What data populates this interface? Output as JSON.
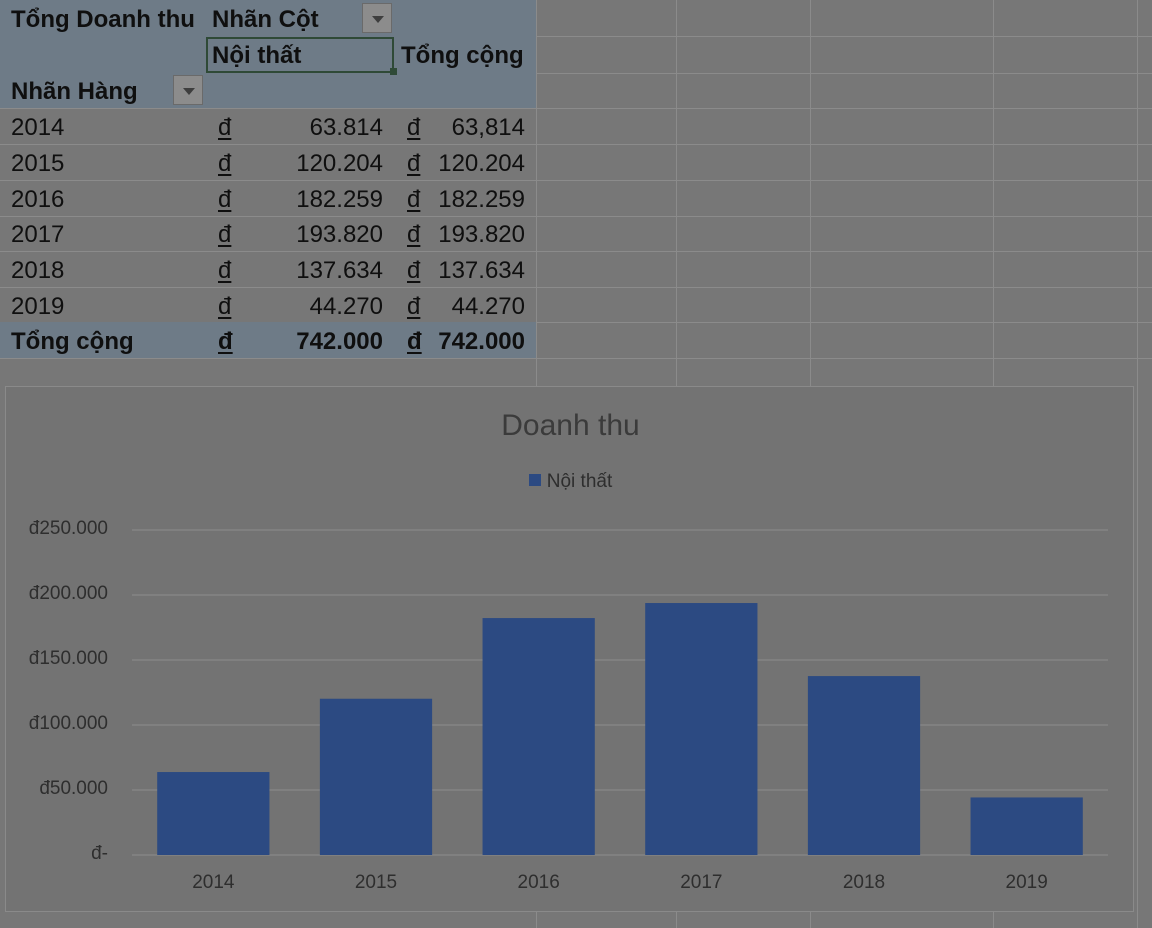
{
  "pivot": {
    "header_value": "Tổng Doanh thu",
    "column_labels": "Nhãn Cột",
    "column_item": "Nội thất",
    "grand_total_col": "Tổng cộng",
    "row_labels": "Nhãn Hàng",
    "currency_symbol": "đ",
    "rows": [
      {
        "year": "2014",
        "value": "63.814",
        "total": "63,814"
      },
      {
        "year": "2015",
        "value": "120.204",
        "total": "120.204"
      },
      {
        "year": "2016",
        "value": "182.259",
        "total": "182.259"
      },
      {
        "year": "2017",
        "value": "193.820",
        "total": "193.820"
      },
      {
        "year": "2018",
        "value": "137.634",
        "total": "137.634"
      },
      {
        "year": "2019",
        "value": "44.270",
        "total": "44.270"
      }
    ],
    "grand_total": {
      "label": "Tổng cộng",
      "value": "742.000",
      "total": "742.000"
    }
  },
  "chart_data": {
    "type": "bar",
    "title": "Doanh thu",
    "legend_position": "top",
    "grid": true,
    "categories": [
      "2014",
      "2015",
      "2016",
      "2017",
      "2018",
      "2019"
    ],
    "series": [
      {
        "name": "Nội thất",
        "values": [
          63814,
          120204,
          182259,
          193820,
          137634,
          44270
        ]
      }
    ],
    "ylim": [
      0,
      250000
    ],
    "yticks": [
      0,
      50000,
      100000,
      150000,
      200000,
      250000
    ],
    "ytick_labels": [
      "đ-",
      "đ50.000",
      "đ100.000",
      "đ150.000",
      "đ200.000",
      "đ250.000"
    ],
    "xlabel": "",
    "ylabel": "",
    "colors": {
      "bar": "#2c4a82",
      "gridline": "#8c8c8c"
    }
  }
}
